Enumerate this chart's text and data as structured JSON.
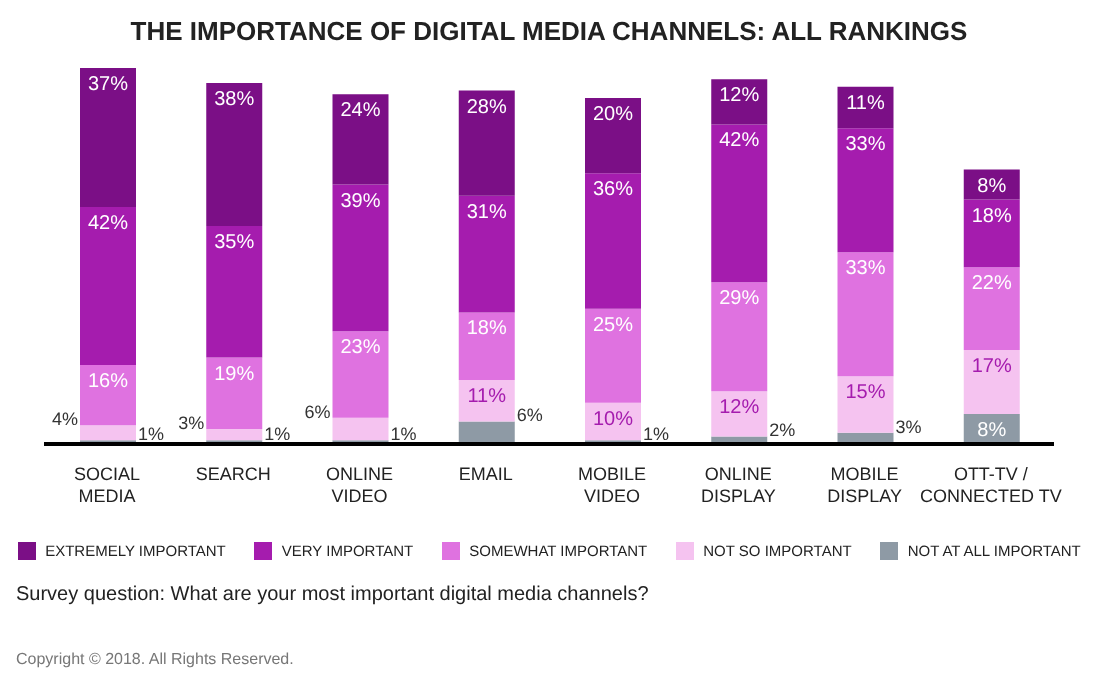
{
  "chart_data": {
    "type": "bar",
    "stacked": true,
    "title": "THE IMPORTANCE OF DIGITAL MEDIA CHANNELS: ALL RANKINGS",
    "categories": [
      "SOCIAL MEDIA",
      "SEARCH",
      "ONLINE VIDEO",
      "EMAIL",
      "MOBILE VIDEO",
      "ONLINE DISPLAY",
      "MOBILE DISPLAY",
      "OTT-TV / CONNECTED TV"
    ],
    "series": [
      {
        "name": "NOT AT ALL IMPORTANT",
        "color": "#8e9aa5",
        "values": [
          1,
          1,
          1,
          6,
          1,
          2,
          3,
          8
        ],
        "value_labels": [
          "1%",
          "1%",
          "1%",
          "6%",
          "1%",
          "2%",
          "3%",
          "8%"
        ]
      },
      {
        "name": "NOT SO IMPORTANT",
        "color": "#f5c3f0",
        "values": [
          4,
          3,
          6,
          11,
          10,
          12,
          15,
          17
        ],
        "value_labels": [
          "4%",
          "3%",
          "6%",
          "11%",
          "10%",
          "12%",
          "15%",
          "17%"
        ]
      },
      {
        "name": "SOMEWHAT IMPORTANT",
        "color": "#df72e0",
        "values": [
          16,
          19,
          23,
          18,
          25,
          29,
          33,
          22
        ],
        "value_labels": [
          "16%",
          "19%",
          "23%",
          "18%",
          "25%",
          "29%",
          "33%",
          "22%"
        ]
      },
      {
        "name": "VERY IMPORTANT",
        "color": "#a51cae",
        "values": [
          42,
          35,
          39,
          31,
          36,
          42,
          33,
          18
        ],
        "value_labels": [
          "42%",
          "35%",
          "39%",
          "31%",
          "36%",
          "42%",
          "33%",
          "18%"
        ]
      },
      {
        "name": "EXTREMELY IMPORTANT",
        "color": "#7b0f86",
        "values": [
          37,
          38,
          24,
          28,
          20,
          12,
          11,
          8
        ],
        "value_labels": [
          "37%",
          "38%",
          "24%",
          "28%",
          "20%",
          "12%",
          "11%",
          "8%"
        ]
      }
    ],
    "legend": "bottom",
    "annotations": [
      "Survey question: What are your most important digital media channels?",
      "Copyright © 2018. All Rights Reserved."
    ]
  }
}
